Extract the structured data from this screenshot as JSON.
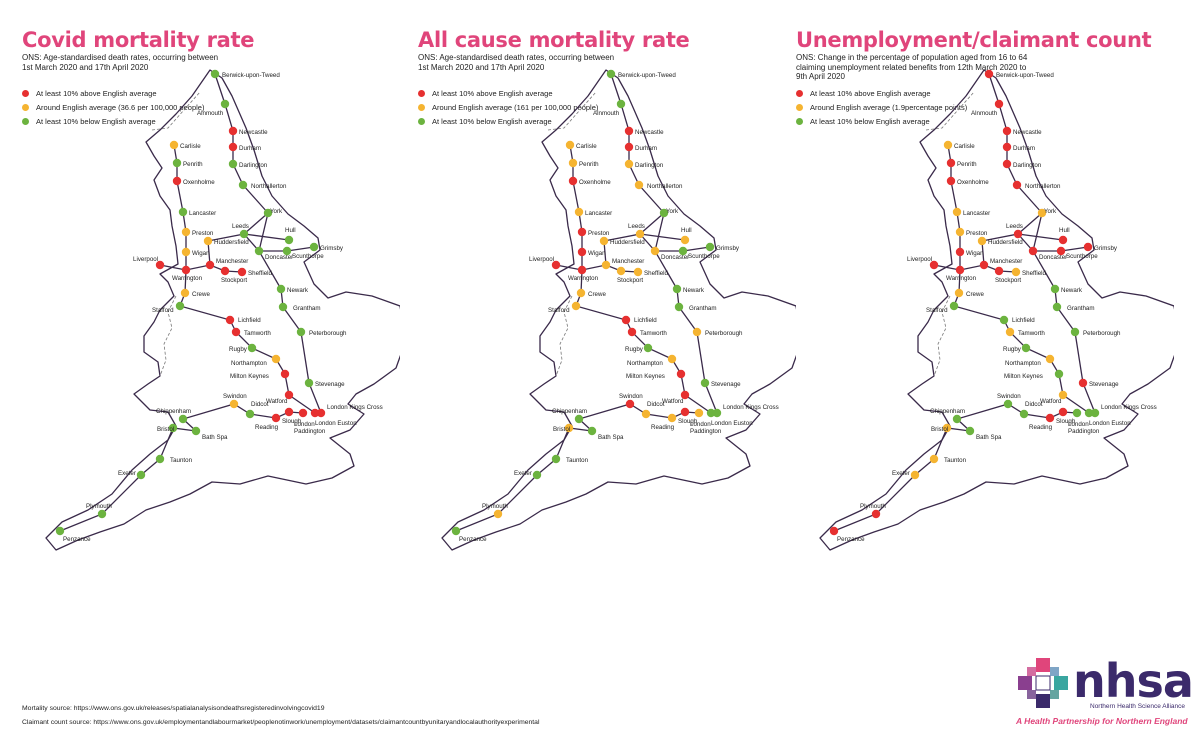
{
  "colors": {
    "red": "#e63030",
    "amber": "#f5b431",
    "green": "#6cb33f",
    "title": "#e0457b",
    "line": "#3a2a4a"
  },
  "panels": [
    {
      "title": "Covid mortality rate",
      "subtitle": "ONS: Age-standardised death rates, occurring between 1st March 2020 and 17th April 2020",
      "legend": [
        "At least 10% above English average",
        "Around English average (36.6 per 100,000 people)",
        "At least 10% below English average"
      ],
      "status": {
        "Berwick-upon-Tweed": "green",
        "Alnmouth": "green",
        "Newcastle": "red",
        "Durham": "red",
        "Darlington": "green",
        "Carlisle": "amber",
        "Penrith": "green",
        "Oxenholme": "red",
        "Northallerton": "green",
        "York": "green",
        "Lancaster": "green",
        "Preston": "amber",
        "Huddersfield": "amber",
        "Leeds": "green",
        "Hull": "green",
        "Grimsby": "green",
        "Wigan": "amber",
        "Manchester": "red",
        "Doncaster": "green",
        "Scunthorpe": "green",
        "Liverpool": "red",
        "Warrington": "red",
        "Stockport": "red",
        "Sheffield": "red",
        "Crewe": "amber",
        "Newark": "green",
        "Grantham": "green",
        "Stafford": "green",
        "Lichfield": "red",
        "Tamworth": "red",
        "Peterborough": "green",
        "Rugby": "green",
        "Northampton": "amber",
        "Milton Keynes": "red",
        "Stevenage": "green",
        "Watford": "red",
        "Chippenham": "green",
        "Swindon": "amber",
        "Didcot": "green",
        "Bristol": "green",
        "Bath Spa": "green",
        "Reading": "red",
        "Slough": "red",
        "London Paddington": "red",
        "London Euston": "red",
        "London Kings Cross": "red",
        "Taunton": "green",
        "Exeter": "green",
        "Plymouth": "green",
        "Penzance": "green"
      }
    },
    {
      "title": "All cause mortality rate",
      "subtitle": "ONS: Age-standardised death rates, occurring between 1st March 2020 and 17th April 2020",
      "legend": [
        "At least 10% above English average",
        "Around English average (161 per 100,000 people)",
        "At least 10% below English average"
      ],
      "status": {
        "Berwick-upon-Tweed": "green",
        "Alnmouth": "green",
        "Newcastle": "red",
        "Durham": "red",
        "Darlington": "amber",
        "Carlisle": "amber",
        "Penrith": "amber",
        "Oxenholme": "red",
        "Northallerton": "amber",
        "York": "green",
        "Lancaster": "amber",
        "Preston": "red",
        "Huddersfield": "amber",
        "Leeds": "amber",
        "Hull": "amber",
        "Grimsby": "green",
        "Wigan": "red",
        "Manchester": "amber",
        "Doncaster": "amber",
        "Scunthorpe": "green",
        "Liverpool": "red",
        "Warrington": "red",
        "Stockport": "amber",
        "Sheffield": "amber",
        "Crewe": "amber",
        "Newark": "green",
        "Grantham": "green",
        "Stafford": "amber",
        "Lichfield": "red",
        "Tamworth": "red",
        "Peterborough": "amber",
        "Rugby": "green",
        "Northampton": "amber",
        "Milton Keynes": "red",
        "Stevenage": "green",
        "Watford": "red",
        "Chippenham": "green",
        "Swindon": "red",
        "Didcot": "amber",
        "Bristol": "amber",
        "Bath Spa": "green",
        "Reading": "amber",
        "Slough": "red",
        "London Paddington": "amber",
        "London Euston": "green",
        "London Kings Cross": "green",
        "Taunton": "green",
        "Exeter": "green",
        "Plymouth": "amber",
        "Penzance": "green"
      }
    },
    {
      "title": "Unemployment/claimant count",
      "subtitle": "ONS: Change in the percentage of population aged from 16 to 64 claiming unemployment related benefits from 12th March 2020 to 9th April 2020",
      "legend": [
        "At least 10% above English average",
        "Around English average (1.9percentage points)",
        "At least 10% below English average"
      ],
      "status": {
        "Berwick-upon-Tweed": "red",
        "Alnmouth": "red",
        "Newcastle": "red",
        "Durham": "red",
        "Darlington": "red",
        "Carlisle": "amber",
        "Penrith": "red",
        "Oxenholme": "red",
        "Northallerton": "red",
        "York": "amber",
        "Lancaster": "amber",
        "Preston": "amber",
        "Huddersfield": "amber",
        "Leeds": "red",
        "Hull": "red",
        "Grimsby": "red",
        "Wigan": "red",
        "Manchester": "red",
        "Doncaster": "red",
        "Scunthorpe": "red",
        "Liverpool": "red",
        "Warrington": "red",
        "Stockport": "red",
        "Sheffield": "amber",
        "Crewe": "amber",
        "Newark": "green",
        "Grantham": "green",
        "Stafford": "green",
        "Lichfield": "green",
        "Tamworth": "amber",
        "Peterborough": "green",
        "Rugby": "green",
        "Northampton": "amber",
        "Milton Keynes": "green",
        "Stevenage": "red",
        "Watford": "amber",
        "Chippenham": "green",
        "Swindon": "green",
        "Didcot": "green",
        "Bristol": "amber",
        "Bath Spa": "green",
        "Reading": "red",
        "Slough": "red",
        "London Paddington": "green",
        "London Euston": "green",
        "London Kings Cross": "green",
        "Taunton": "amber",
        "Exeter": "amber",
        "Plymouth": "red",
        "Penzance": "red"
      }
    }
  ],
  "footer": {
    "mortality": "Mortality source: https://www.ons.gov.uk/releases/spatialanalysisondeathsregisteredinvolvingcovid19",
    "claimant": "Claimant count source: https://www.ons.gov.uk/employmentandlabourmarket/peoplenotinwork/unemployment/datasets/claimantcountbyunitaryandlocalauthorityexperimental"
  },
  "brand": {
    "name": "nhsa",
    "subname": "Northern Health Science Alliance",
    "tagline": "A Health Partnership for Northern England"
  }
}
